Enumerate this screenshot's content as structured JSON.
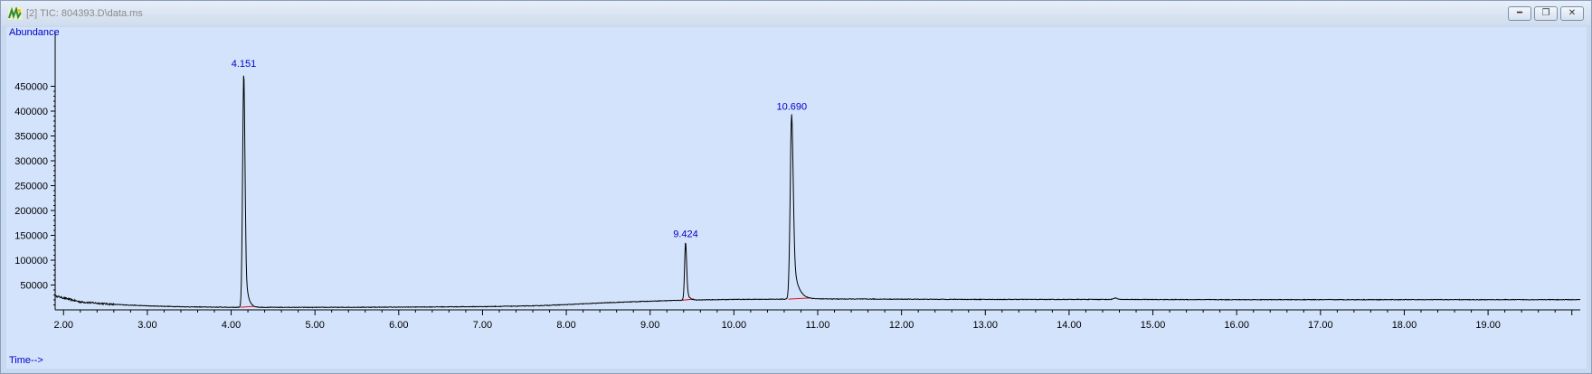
{
  "window": {
    "title": "[2] TIC: 804393.D\\data.ms",
    "buttons": [
      "minimize",
      "restore",
      "close"
    ]
  },
  "colors": {
    "plot_bg": "#d3e3fb",
    "trace": "#000000",
    "label": "#0000c8",
    "baseline": "#e01010"
  },
  "chart_data": {
    "type": "line",
    "ylabel": "Abundance",
    "xlabel": "Time-->",
    "xlim": [
      1.9,
      20.1
    ],
    "ylim": [
      0,
      500000
    ],
    "x_ticks": [
      "2.00",
      "3.00",
      "4.00",
      "5.00",
      "6.00",
      "7.00",
      "8.00",
      "9.00",
      "10.00",
      "11.00",
      "12.00",
      "13.00",
      "14.00",
      "15.00",
      "16.00",
      "17.00",
      "18.00",
      "19.00"
    ],
    "y_ticks": [
      "50000",
      "100000",
      "150000",
      "200000",
      "250000",
      "300000",
      "350000",
      "400000",
      "450000"
    ],
    "grid": false,
    "peaks": [
      {
        "label": "4.151",
        "rt": 4.151,
        "height": 475000,
        "width": 0.014,
        "tail": 0.03
      },
      {
        "label": "9.424",
        "rt": 9.424,
        "height": 118000,
        "width": 0.012,
        "tail": 0.025
      },
      {
        "label": "10.690",
        "rt": 10.69,
        "height": 372000,
        "width": 0.018,
        "tail": 0.055
      }
    ],
    "baseline": [
      [
        1.9,
        28000
      ],
      [
        2.2,
        16000
      ],
      [
        2.6,
        11000
      ],
      [
        3.0,
        8000
      ],
      [
        3.5,
        6000
      ],
      [
        4.0,
        5200
      ],
      [
        5.0,
        5000
      ],
      [
        6.0,
        5500
      ],
      [
        7.0,
        6500
      ],
      [
        7.6,
        8000
      ],
      [
        8.0,
        10500
      ],
      [
        8.5,
        14500
      ],
      [
        9.0,
        17500
      ],
      [
        9.4,
        19500
      ],
      [
        10.0,
        21000
      ],
      [
        10.6,
        21500
      ],
      [
        11.0,
        22000
      ],
      [
        12.0,
        21500
      ],
      [
        13.0,
        21000
      ],
      [
        14.0,
        21000
      ],
      [
        14.5,
        21000
      ],
      [
        14.55,
        24000
      ],
      [
        14.6,
        21000
      ],
      [
        15.0,
        20800
      ],
      [
        16.0,
        20500
      ],
      [
        17.0,
        20500
      ],
      [
        18.0,
        20500
      ],
      [
        19.0,
        20500
      ],
      [
        20.1,
        20500
      ]
    ]
  }
}
